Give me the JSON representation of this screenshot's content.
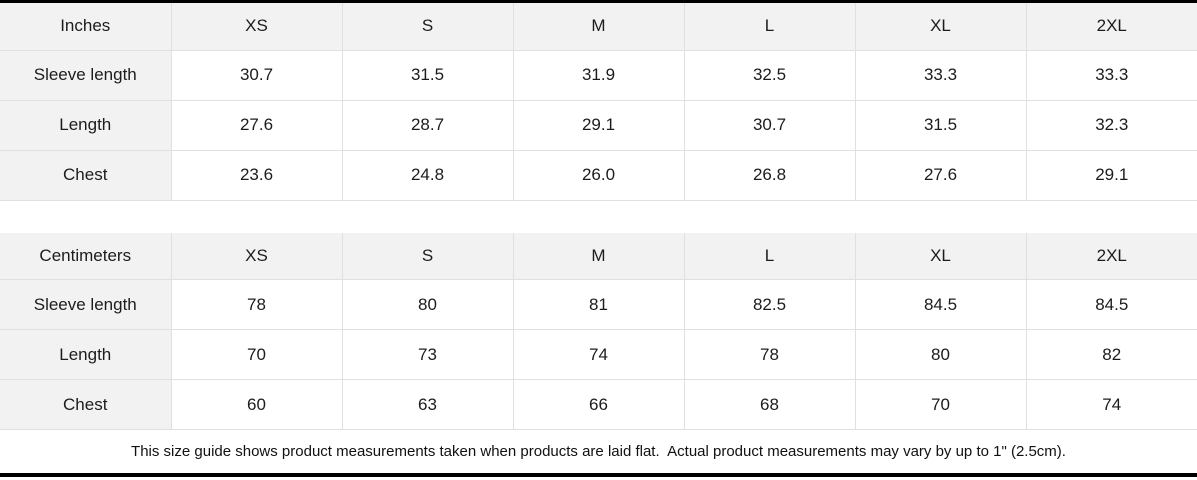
{
  "colors": {
    "header_background": "#f2f2f2",
    "cell_background": "#ffffff",
    "grid_border": "#e0e0e0",
    "edge_bar": "#000000",
    "text": "#1c1c1c"
  },
  "tables": [
    {
      "unit_label": "Inches",
      "size_headers": [
        "XS",
        "S",
        "M",
        "L",
        "XL",
        "2XL"
      ],
      "rows": [
        {
          "label": "Sleeve length",
          "values": [
            "30.7",
            "31.5",
            "31.9",
            "32.5",
            "33.3",
            "33.3"
          ]
        },
        {
          "label": "Length",
          "values": [
            "27.6",
            "28.7",
            "29.1",
            "30.7",
            "31.5",
            "32.3"
          ]
        },
        {
          "label": "Chest",
          "values": [
            "23.6",
            "24.8",
            "26.0",
            "26.8",
            "27.6",
            "29.1"
          ]
        }
      ]
    },
    {
      "unit_label": "Centimeters",
      "size_headers": [
        "XS",
        "S",
        "M",
        "L",
        "XL",
        "2XL"
      ],
      "rows": [
        {
          "label": "Sleeve length",
          "values": [
            "78",
            "80",
            "81",
            "82.5",
            "84.5",
            "84.5"
          ]
        },
        {
          "label": "Length",
          "values": [
            "70",
            "73",
            "74",
            "78",
            "80",
            "82"
          ]
        },
        {
          "label": "Chest",
          "values": [
            "60",
            "63",
            "66",
            "68",
            "70",
            "74"
          ]
        }
      ]
    }
  ],
  "footer": {
    "note": "This size guide shows product measurements taken when products are laid flat.  Actual product measurements may vary by up to 1\" (2.5cm)."
  }
}
